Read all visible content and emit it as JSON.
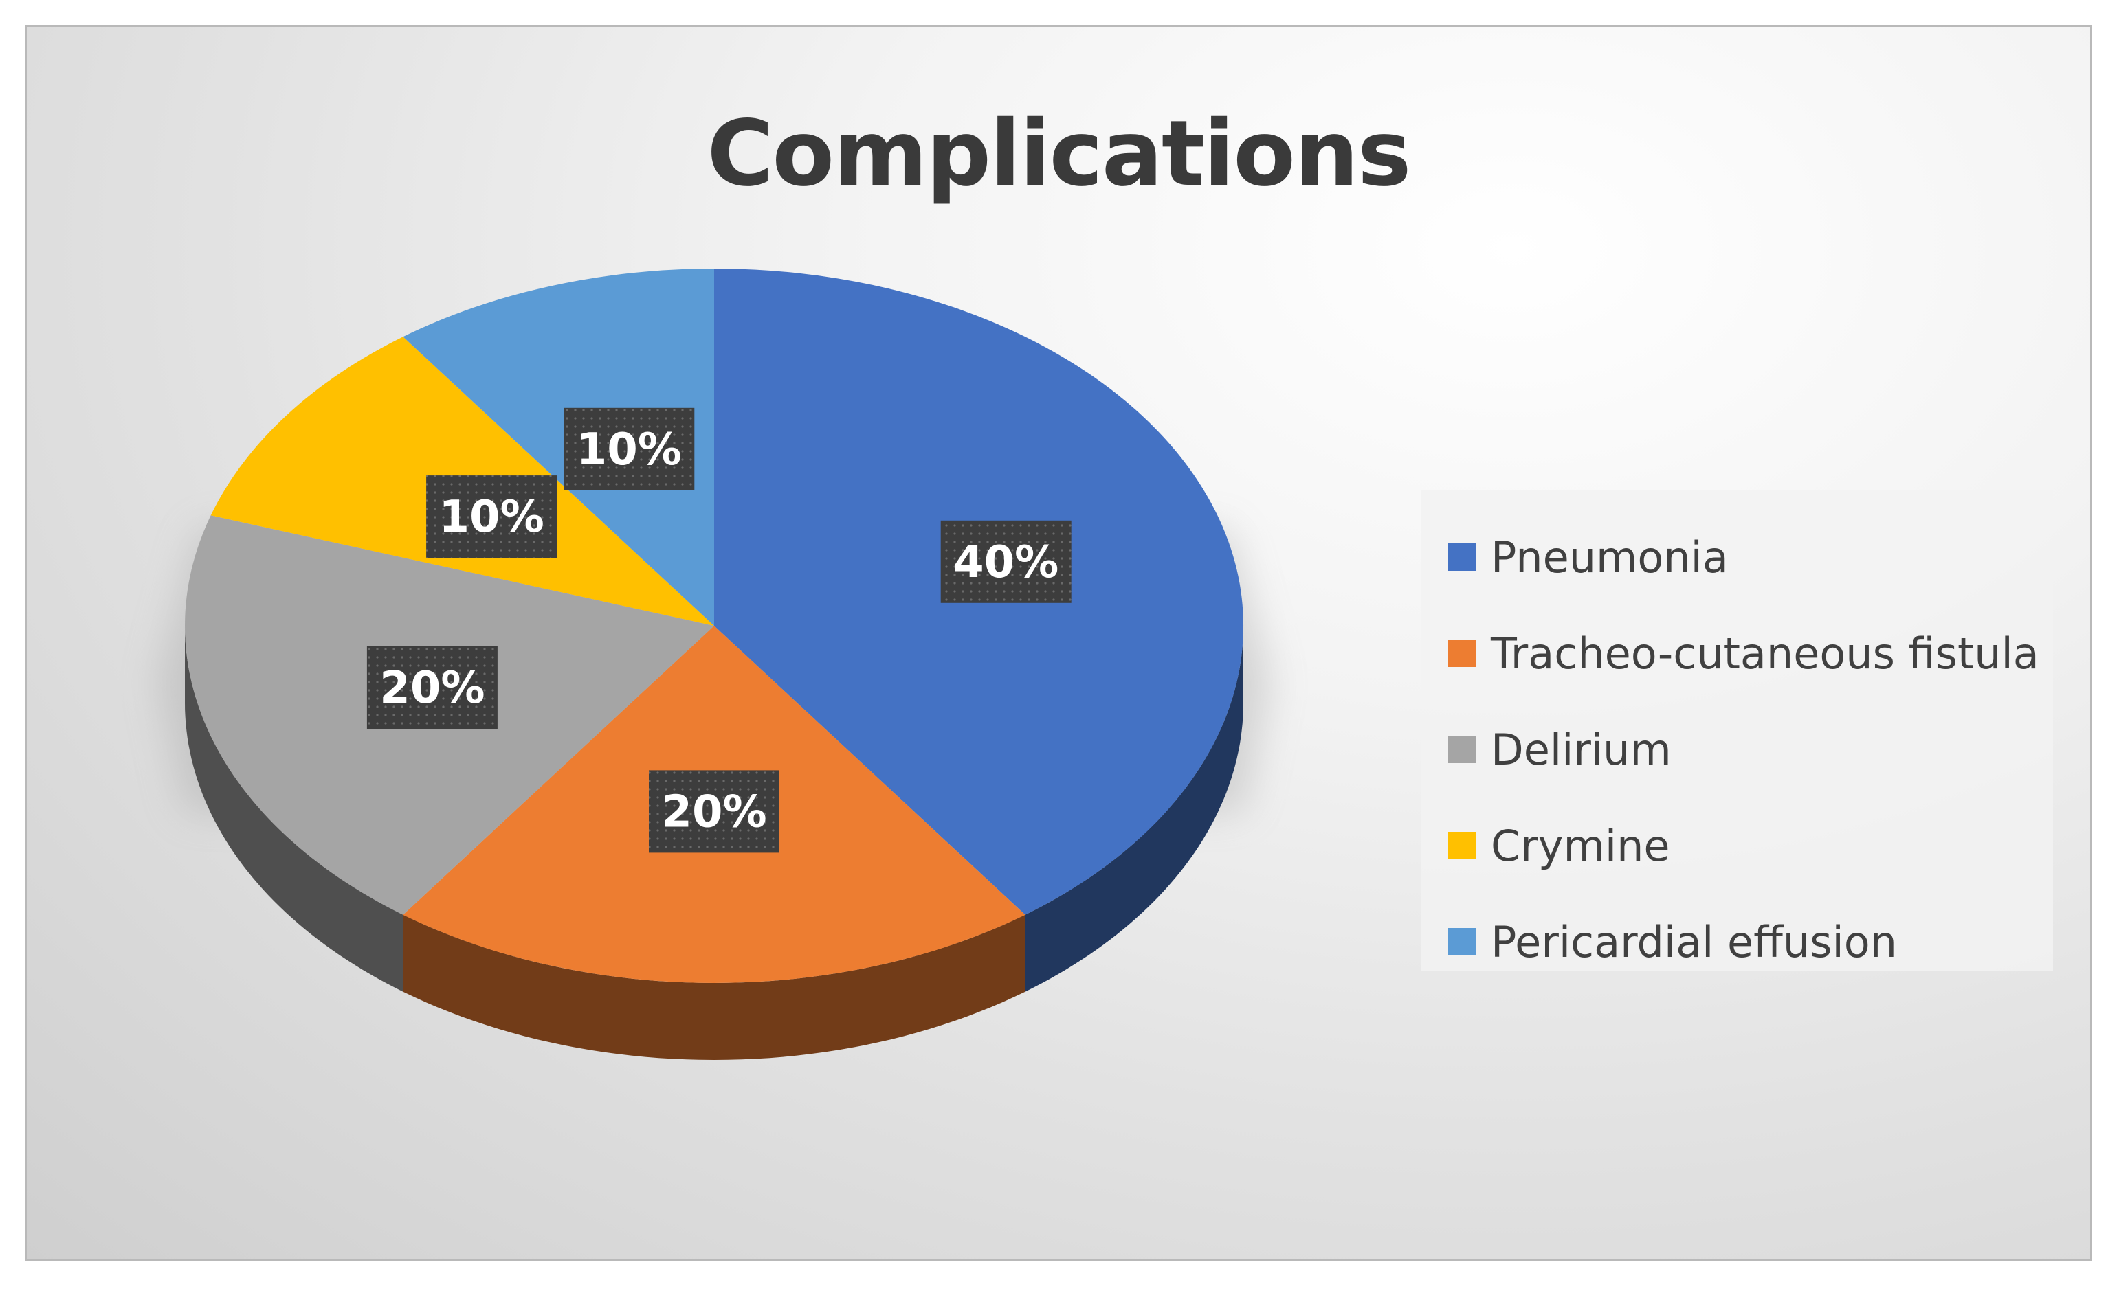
{
  "chart_data": {
    "type": "pie",
    "title": "Complications",
    "categories": [
      "Pneumonia",
      "Tracheo-cutaneous fistula",
      "Delirium",
      "Crymine",
      "Pericardial effusion"
    ],
    "values": [
      40,
      20,
      20,
      10,
      10
    ],
    "labels": [
      "40%",
      "20%",
      "20%",
      "10%",
      "10%"
    ],
    "colors": [
      "#4472C4",
      "#ED7D31",
      "#A5A5A5",
      "#FFC000",
      "#5B9BD5"
    ],
    "style": "3d",
    "legend": "right"
  }
}
